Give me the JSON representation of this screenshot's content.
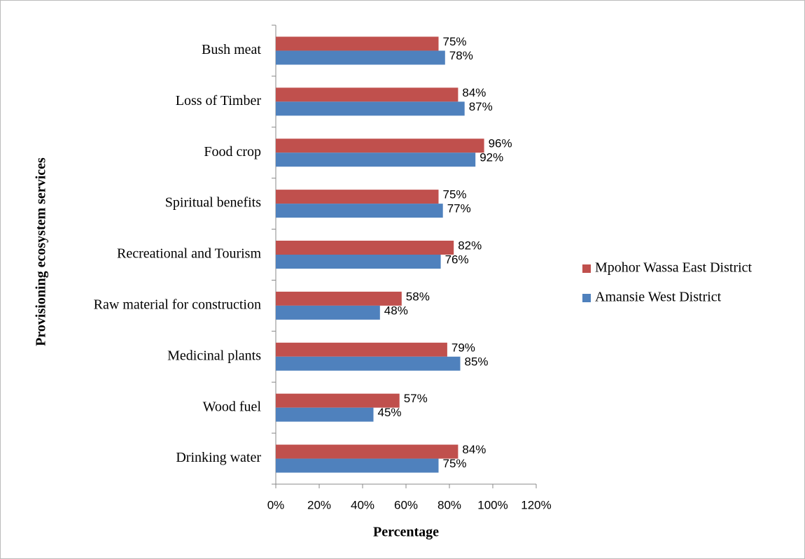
{
  "chart_data": {
    "type": "hbar",
    "x_label": "Percentage",
    "y_label": "Provisioning ecosystem services",
    "categories": [
      "Bush meat",
      "Loss of Timber",
      "Food crop",
      "Spiritual benefits",
      "Recreational and Tourism",
      "Raw material for construction",
      "Medicinal plants",
      "Wood fuel",
      "Drinking water"
    ],
    "series": [
      {
        "name": "Mpohor Wassa East District",
        "color": "#c0504d",
        "values": [
          75,
          84,
          96,
          75,
          82,
          58,
          79,
          57,
          84
        ],
        "value_labels": [
          "75%",
          "84%",
          "96%",
          "75%",
          "82%",
          "58%",
          "79%",
          "57%",
          "84%"
        ]
      },
      {
        "name": "Amansie West District",
        "color": "#4f81bd",
        "values": [
          78,
          87,
          92,
          77,
          76,
          48,
          85,
          45,
          75
        ],
        "value_labels": [
          "78%",
          "87%",
          "92%",
          "77%",
          "76%",
          "48%",
          "85%",
          "45%",
          "75%"
        ]
      }
    ],
    "xlim": [
      0,
      120
    ],
    "xticks": [
      {
        "value": 0,
        "label": "0%"
      },
      {
        "value": 20,
        "label": "20%"
      },
      {
        "value": 40,
        "label": "40%"
      },
      {
        "value": 60,
        "label": "60%"
      },
      {
        "value": 80,
        "label": "80%"
      },
      {
        "value": 100,
        "label": "100%"
      },
      {
        "value": 120,
        "label": "120%"
      }
    ],
    "legend": "right"
  }
}
